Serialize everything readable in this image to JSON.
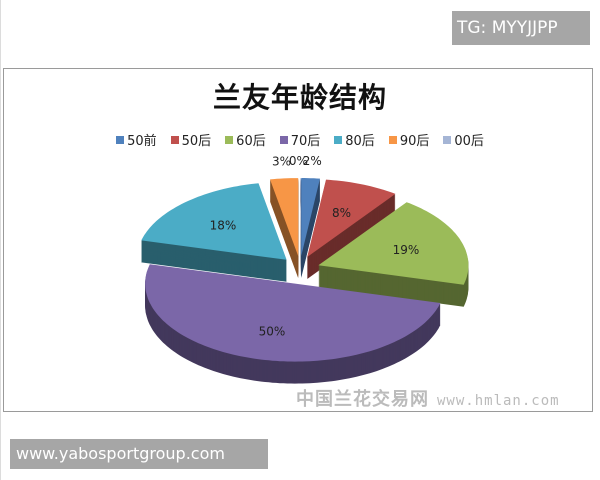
{
  "watermark_top": "TG: MYYJJPP",
  "watermark_bottom": "www.yabosportgroup.com",
  "site_watermark": {
    "cn": "中国兰花交易网",
    "url": "www.hmlan.com"
  },
  "chart_data": {
    "type": "pie",
    "style": "3d-exploded",
    "title": "兰友年龄结构",
    "legend_position": "top",
    "categories": [
      "50前",
      "50后",
      "60后",
      "70后",
      "80后",
      "90后",
      "00后"
    ],
    "values": [
      2,
      8,
      19,
      50,
      18,
      3,
      0
    ],
    "labels": [
      "2%",
      "8%",
      "19%",
      "50%",
      "18%",
      "3%",
      "0%"
    ],
    "colors": [
      "#4F81BD",
      "#C0504D",
      "#9BBB59",
      "#7B67A8",
      "#4BACC6",
      "#F79646",
      "#A5B5D5"
    ]
  }
}
